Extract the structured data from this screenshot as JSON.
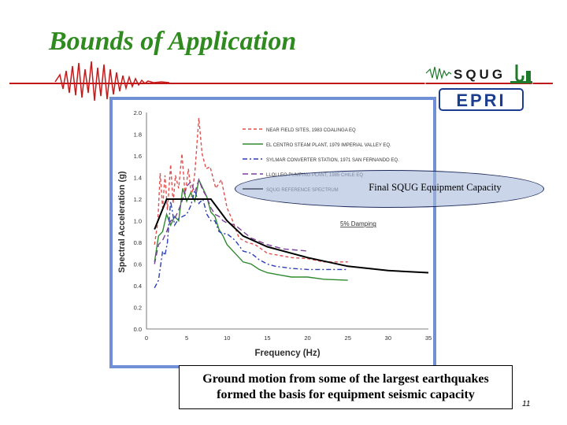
{
  "slide": {
    "title": "Bounds of Application",
    "slide_number": "11",
    "callout": "Final SQUG Equipment Capacity",
    "caption_lines": [
      "Ground motion from some of the largest earthquakes",
      "formed the basis for equipment seismic capacity"
    ]
  },
  "logos": {
    "squg": "SQUG",
    "epri": "EPRI"
  },
  "colors": {
    "title": "#2f8a1f",
    "rule": "#c01818",
    "frame": "#6f8fd6",
    "axis_text": "#2e2e2e"
  },
  "chart_data": {
    "type": "line",
    "xlabel": "Frequency (Hz)",
    "ylabel": "Spectral Acceleration (g)",
    "xlim": [
      0,
      35
    ],
    "ylim": [
      0,
      2.0
    ],
    "x_ticks": [
      "0",
      "5",
      "10",
      "15",
      "20",
      "25",
      "30",
      "35"
    ],
    "y_ticks": [
      "0.0",
      "0.2",
      "0.4",
      "0.6",
      "0.8",
      "1.0",
      "1.2",
      "1.4",
      "1.6",
      "1.8",
      "2.0"
    ],
    "grid": false,
    "legend_position": "top-right",
    "annotation": "5% Damping",
    "series": [
      {
        "name": "NEAR FIELD SITES, 1983 COALINGA EQ",
        "color": "#e0504f",
        "dash": "4,3",
        "points": [
          [
            1.0,
            0.78
          ],
          [
            1.4,
            0.98
          ],
          [
            1.7,
            1.44
          ],
          [
            2.0,
            1.12
          ],
          [
            2.3,
            1.42
          ],
          [
            2.6,
            1.1
          ],
          [
            3.0,
            1.52
          ],
          [
            3.3,
            1.16
          ],
          [
            3.6,
            1.42
          ],
          [
            4.0,
            1.3
          ],
          [
            4.4,
            1.62
          ],
          [
            4.8,
            1.24
          ],
          [
            5.2,
            1.48
          ],
          [
            5.6,
            1.22
          ],
          [
            6.0,
            1.44
          ],
          [
            6.5,
            1.95
          ],
          [
            6.9,
            1.62
          ],
          [
            7.4,
            1.48
          ],
          [
            7.9,
            1.5
          ],
          [
            8.6,
            1.3
          ],
          [
            9.3,
            1.38
          ],
          [
            10.0,
            1.12
          ],
          [
            10.7,
            1.0
          ],
          [
            11.5,
            0.84
          ],
          [
            12.5,
            0.8
          ],
          [
            13.5,
            0.78
          ],
          [
            15.0,
            0.7
          ],
          [
            16.5,
            0.68
          ],
          [
            18.0,
            0.66
          ],
          [
            20.0,
            0.65
          ],
          [
            22.0,
            0.62
          ],
          [
            25.0,
            0.62
          ]
        ]
      },
      {
        "name": "EL CENTRO STEAM PLANT, 1979 IMPERIAL VALLEY EQ.",
        "color": "#2f8a2f",
        "dash": "",
        "points": [
          [
            1.0,
            0.62
          ],
          [
            1.5,
            0.86
          ],
          [
            2.0,
            0.9
          ],
          [
            2.5,
            1.06
          ],
          [
            3.0,
            0.96
          ],
          [
            3.5,
            1.04
          ],
          [
            4.0,
            1.0
          ],
          [
            4.5,
            1.3
          ],
          [
            5.0,
            1.18
          ],
          [
            5.5,
            1.26
          ],
          [
            6.0,
            1.18
          ],
          [
            6.5,
            1.38
          ],
          [
            7.0,
            1.3
          ],
          [
            7.5,
            1.22
          ],
          [
            8.0,
            1.08
          ],
          [
            8.5,
            1.04
          ],
          [
            9.0,
            0.92
          ],
          [
            9.5,
            0.86
          ],
          [
            10.0,
            0.78
          ],
          [
            11.0,
            0.7
          ],
          [
            12.0,
            0.62
          ],
          [
            13.0,
            0.6
          ],
          [
            14.0,
            0.55
          ],
          [
            15.0,
            0.52
          ],
          [
            16.5,
            0.5
          ],
          [
            18.0,
            0.48
          ],
          [
            20.0,
            0.48
          ],
          [
            22.0,
            0.46
          ],
          [
            25.0,
            0.45
          ]
        ]
      },
      {
        "name": "SYLMAR CONVERTER STATION, 1971 SAN FERNANDO EQ.",
        "color": "#2b3fb4",
        "dash": "6,3,2,3",
        "points": [
          [
            1.0,
            0.38
          ],
          [
            1.5,
            0.45
          ],
          [
            2.0,
            0.72
          ],
          [
            2.3,
            0.68
          ],
          [
            2.6,
            0.8
          ],
          [
            3.0,
            1.18
          ],
          [
            3.5,
            0.96
          ],
          [
            4.0,
            1.02
          ],
          [
            4.5,
            1.04
          ],
          [
            5.0,
            1.06
          ],
          [
            5.5,
            1.14
          ],
          [
            6.0,
            1.28
          ],
          [
            6.5,
            1.16
          ],
          [
            7.0,
            1.2
          ],
          [
            7.5,
            1.06
          ],
          [
            8.0,
            1.0
          ],
          [
            8.5,
            1.0
          ],
          [
            9.0,
            0.9
          ],
          [
            9.5,
            0.88
          ],
          [
            10.0,
            0.88
          ],
          [
            11.0,
            0.82
          ],
          [
            12.0,
            0.72
          ],
          [
            13.0,
            0.7
          ],
          [
            14.0,
            0.64
          ],
          [
            15.0,
            0.6
          ],
          [
            16.0,
            0.58
          ],
          [
            18.0,
            0.56
          ],
          [
            20.0,
            0.55
          ],
          [
            22.0,
            0.55
          ],
          [
            25.0,
            0.55
          ]
        ]
      },
      {
        "name": "LLOLLEO PUMPING PLANT, 1985 CHILE EQ",
        "color": "#7d3f9a",
        "dash": "7,4",
        "points": [
          [
            1.0,
            0.6
          ],
          [
            1.5,
            0.78
          ],
          [
            2.0,
            0.82
          ],
          [
            2.5,
            0.9
          ],
          [
            3.0,
            1.0
          ],
          [
            3.5,
            1.02
          ],
          [
            4.0,
            1.1
          ],
          [
            4.5,
            1.2
          ],
          [
            5.0,
            1.32
          ],
          [
            5.5,
            1.36
          ],
          [
            6.0,
            1.26
          ],
          [
            6.5,
            1.38
          ],
          [
            7.0,
            1.28
          ],
          [
            7.5,
            1.22
          ],
          [
            8.0,
            1.12
          ],
          [
            8.5,
            1.06
          ],
          [
            9.0,
            1.04
          ],
          [
            9.5,
            1.0
          ],
          [
            10.0,
            0.98
          ],
          [
            11.0,
            0.96
          ],
          [
            12.0,
            0.9
          ],
          [
            13.0,
            0.84
          ],
          [
            15.0,
            0.78
          ],
          [
            17.0,
            0.74
          ],
          [
            20.0,
            0.72
          ]
        ]
      },
      {
        "name": "SQUG REFERENCE SPECTRUM",
        "color": "#000000",
        "dash": "",
        "points": [
          [
            1.0,
            0.92
          ],
          [
            2.5,
            1.2
          ],
          [
            8.0,
            1.2
          ],
          [
            10.0,
            1.0
          ],
          [
            12.0,
            0.86
          ],
          [
            15.0,
            0.76
          ],
          [
            20.0,
            0.66
          ],
          [
            25.0,
            0.58
          ],
          [
            30.0,
            0.54
          ],
          [
            35.0,
            0.52
          ]
        ]
      }
    ]
  }
}
